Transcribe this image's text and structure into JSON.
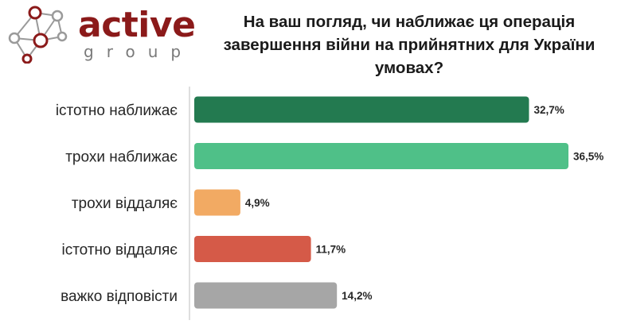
{
  "logo": {
    "word": "active",
    "sub": "group"
  },
  "chart_data": {
    "type": "bar",
    "orientation": "horizontal",
    "title": "На ваш погляд, чи наближає ця операція завершення війни на прийнятних для України умовах?",
    "categories": [
      "істотно наближає",
      "трохи наближає",
      "трохи віддаляє",
      "істотно віддаляє",
      "важко відповісти"
    ],
    "values": [
      32.7,
      36.5,
      4.9,
      11.7,
      14.2
    ],
    "value_labels": [
      "32,7%",
      "36,5%",
      "4,9%",
      "11,7%",
      "14,2%"
    ],
    "colors": [
      "#237a50",
      "#4fc088",
      "#f2aa63",
      "#d55a48",
      "#a6a6a6"
    ],
    "xlim": [
      0,
      36.5
    ],
    "grid": false,
    "legend": "none"
  }
}
